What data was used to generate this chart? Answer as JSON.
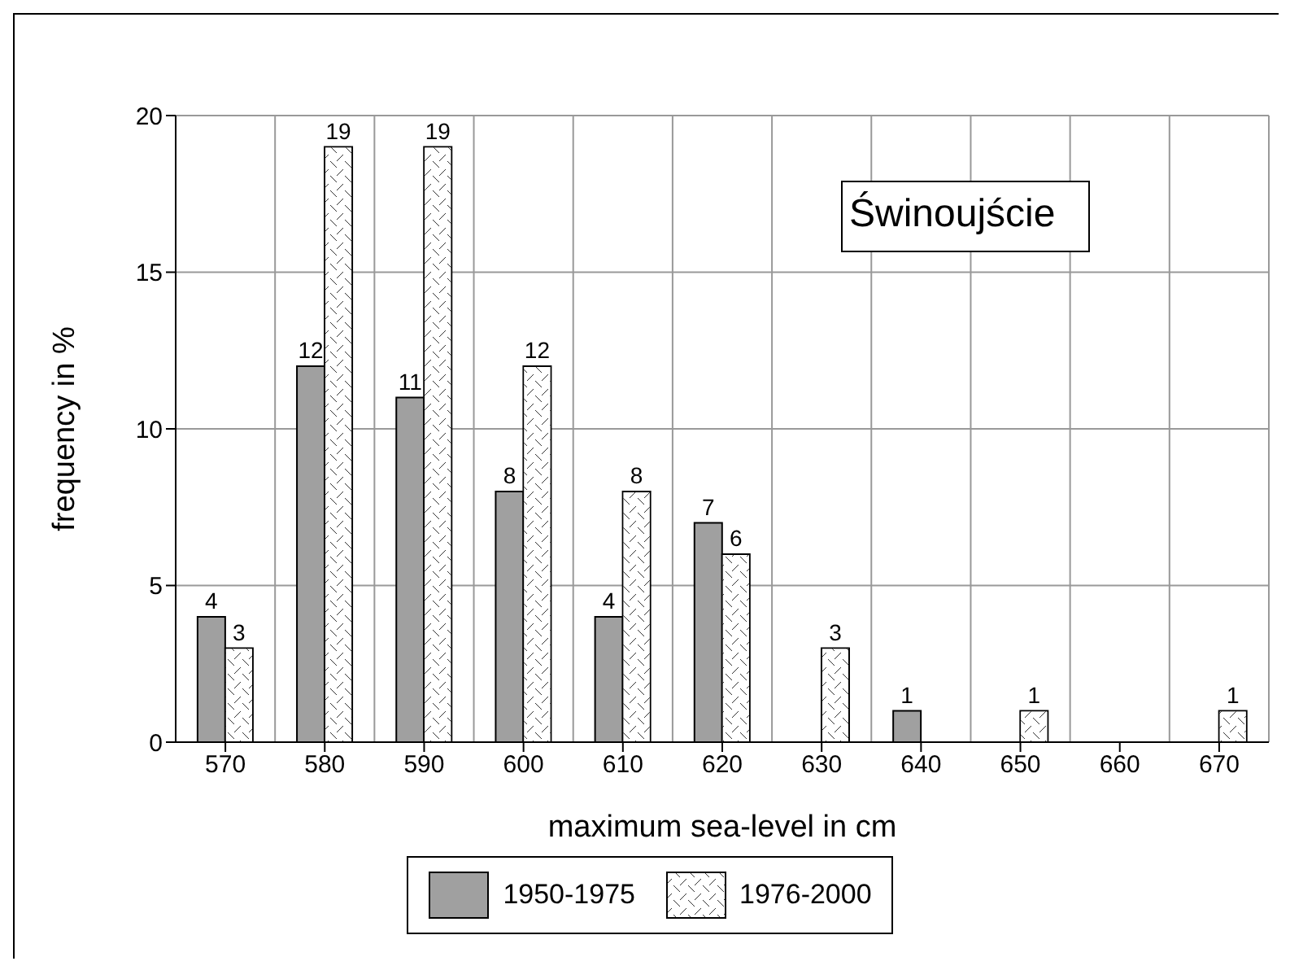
{
  "chart_data": {
    "type": "bar",
    "xlabel": "maximum sea-level in cm",
    "ylabel": "frequency in %",
    "categories": [
      "570",
      "580",
      "590",
      "600",
      "610",
      "620",
      "630",
      "640",
      "650",
      "660",
      "670"
    ],
    "series": [
      {
        "name": "1950-1975",
        "color": "#a0a0a0",
        "values": [
          4,
          12,
          11,
          8,
          4,
          7,
          null,
          1,
          null,
          null,
          null
        ]
      },
      {
        "name": "1976-2000",
        "color": "#ffffff",
        "values": [
          3,
          19,
          19,
          12,
          8,
          6,
          3,
          null,
          1,
          null,
          1
        ]
      }
    ],
    "ylim": [
      0,
      20
    ],
    "yticks": [
      0,
      5,
      10,
      15,
      20
    ],
    "grid": true,
    "legend": "bottom",
    "data_labels": true,
    "annotations": [
      "Świnoujście"
    ]
  }
}
